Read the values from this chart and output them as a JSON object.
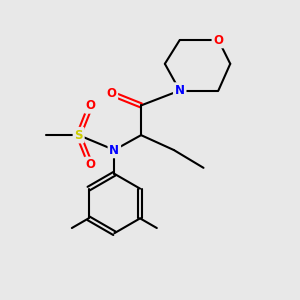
{
  "background_color": "#e8e8e8",
  "bond_color": "#000000",
  "atom_colors": {
    "N": "#0000FF",
    "O": "#FF0000",
    "S": "#CCCC00",
    "C": "#000000"
  },
  "figsize": [
    3.0,
    3.0
  ],
  "dpi": 100
}
